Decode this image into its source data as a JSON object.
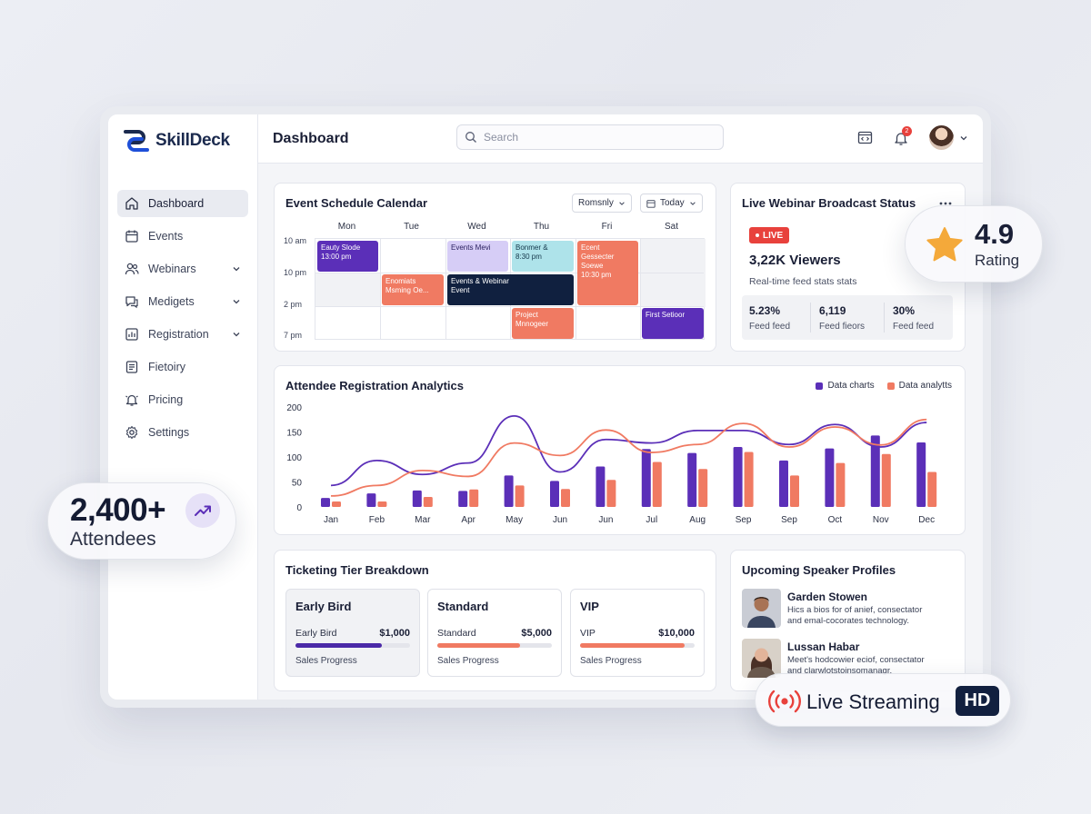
{
  "brand": {
    "name_a": "Skill",
    "name_b": "Deck"
  },
  "header": {
    "title": "Dashboard",
    "search_placeholder": "Search",
    "notification_count": "2"
  },
  "sidebar": {
    "items": [
      {
        "label": "Dashboard",
        "icon": "home-icon"
      },
      {
        "label": "Events",
        "icon": "calendar-icon"
      },
      {
        "label": "Webinars",
        "icon": "users-icon"
      },
      {
        "label": "Medigets",
        "icon": "chat-icon"
      },
      {
        "label": "Registration",
        "icon": "chart-icon"
      },
      {
        "label": "Fietoiry",
        "icon": "folder-icon"
      },
      {
        "label": "Pricing",
        "icon": "bell-icon"
      },
      {
        "label": "Settings",
        "icon": "gear-icon"
      }
    ]
  },
  "calendar": {
    "title": "Event Schedule Calendar",
    "view_select": "Romsnly",
    "today_button": "Today",
    "days": [
      "Mon",
      "Tue",
      "Wed",
      "Thu",
      "Fri",
      "Sat"
    ],
    "times": [
      "10 am",
      "10 pm",
      "2 pm",
      "7 pm"
    ],
    "events": [
      {
        "line1": "Eauty Slode",
        "line2": "13:00 pm"
      },
      {
        "line1": "Events Mevi",
        "line2": ""
      },
      {
        "line1": "Bonmer &",
        "line2": "8:30 pm"
      },
      {
        "line1": "Ecent",
        "line2": "Gessecter",
        "line3": "Soewe",
        "line4": "10:30 pm"
      },
      {
        "line1": "Enomiats",
        "line2": "Msming Oe..."
      },
      {
        "line1": "Events & Webinar",
        "line2": "Event"
      },
      {
        "line1": "Project",
        "line2": "Mnnogeer"
      },
      {
        "line1": "First Setioor",
        "line2": ""
      }
    ]
  },
  "webinar": {
    "title": "Live Webinar Broadcast Status",
    "live_label": "LIVE",
    "viewers": "3,22K Viewers",
    "subtitle": "Real-time feed stats stats",
    "stats": [
      {
        "value": "5.23%",
        "label": "Feed feed"
      },
      {
        "value": "6,119",
        "label": "Feed fieors"
      },
      {
        "value": "30%",
        "label": "Feed feed"
      }
    ]
  },
  "analytics": {
    "title": "Attendee Registration Analytics"
  },
  "chart_data": {
    "type": "bar",
    "categories": [
      "Jan",
      "Feb",
      "Mar",
      "Apr",
      "May",
      "Jun",
      "Jun",
      "Jul",
      "Aug",
      "Sep",
      "Sep",
      "Oct",
      "Nov",
      "Dec"
    ],
    "ylim": [
      0,
      200
    ],
    "yticks": [
      200,
      150,
      100,
      50,
      0
    ],
    "legend_position": "top-right",
    "series": [
      {
        "name": "Data charts",
        "color": "#5b2fb8",
        "bars": [
          18,
          27,
          33,
          32,
          63,
          52,
          81,
          116,
          108,
          120,
          93,
          117,
          143,
          129
        ],
        "line": [
          43,
          93,
          65,
          88,
          182,
          70,
          135,
          128,
          153,
          153,
          125,
          165,
          120,
          169
        ]
      },
      {
        "name": "Data analytts",
        "color": "#f07a62",
        "bars": [
          11,
          11,
          20,
          35,
          43,
          36,
          54,
          90,
          76,
          110,
          63,
          88,
          106,
          70
        ],
        "line": [
          22,
          43,
          73,
          61,
          128,
          103,
          154,
          109,
          125,
          167,
          120,
          160,
          124,
          175
        ]
      }
    ]
  },
  "tickets": {
    "title": "Ticketing Tier Breakdown",
    "tiers": [
      {
        "name": "Early Bird",
        "sub": "Early Bird",
        "price": "$1,000",
        "progress": 0.75,
        "progress_label": "Sales Progress",
        "color": "#4b2aa8"
      },
      {
        "name": "Standard",
        "sub": "Standard",
        "price": "$5,000",
        "progress": 0.72,
        "progress_label": "Sales Progress",
        "color": "#f07a62"
      },
      {
        "name": "VIP",
        "sub": "VIP",
        "price": "$10,000",
        "progress": 0.91,
        "progress_label": "Sales Progress",
        "color": "#f07a62"
      }
    ]
  },
  "speakers": {
    "title": "Upcoming Speaker Profiles",
    "list": [
      {
        "name": "Garden Stowen",
        "bio1": "Hics a bios for of anief, consectator",
        "bio2": "and emal-cocorates technology."
      },
      {
        "name": "Lussan Habar",
        "bio1": "Meet's hodcowier eciof, consectator",
        "bio2": "and clarwlotstoinsomanagr."
      }
    ]
  },
  "floats": {
    "rating_value": "4.9",
    "rating_label": "Rating",
    "attendees_value": "2,400+",
    "attendees_label": "Attendees",
    "streaming_label": "Live Streaming",
    "hd_label": "HD"
  }
}
